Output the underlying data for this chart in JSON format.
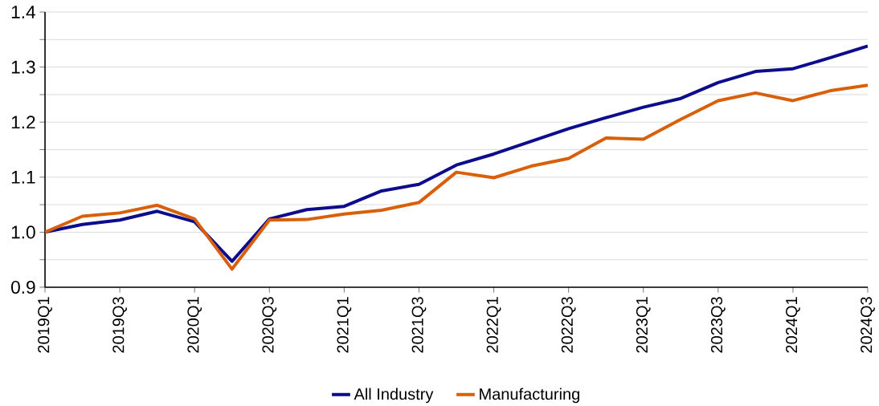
{
  "chart_data": {
    "type": "line",
    "categories": [
      "2019Q1",
      null,
      "2019Q3",
      null,
      "2020Q1",
      null,
      "2020Q3",
      null,
      "2021Q1",
      null,
      "2021Q3",
      null,
      "2022Q1",
      null,
      "2022Q3",
      null,
      "2023Q1",
      null,
      "2023Q3",
      null,
      "2024Q1",
      null,
      "2024Q3"
    ],
    "series": [
      {
        "name": "All Industry",
        "color": "#0c0c8c",
        "values": [
          1.0,
          1.014,
          1.022,
          1.038,
          1.019,
          0.947,
          1.024,
          1.041,
          1.047,
          1.075,
          1.087,
          1.122,
          1.142,
          1.165,
          1.188,
          1.208,
          1.227,
          1.243,
          1.272,
          1.292,
          1.297,
          1.317,
          1.338
        ]
      },
      {
        "name": "Manufacturing",
        "color": "#d9600a",
        "values": [
          1.0,
          1.029,
          1.035,
          1.049,
          1.024,
          0.933,
          1.022,
          1.023,
          1.033,
          1.04,
          1.054,
          1.109,
          1.099,
          1.12,
          1.134,
          1.171,
          1.169,
          1.205,
          1.239,
          1.253,
          1.239,
          1.257,
          1.267
        ]
      }
    ],
    "ylim": [
      0.9,
      1.4
    ],
    "yticks": [
      0.9,
      {
        "value": 0.95,
        "label": null
      },
      {
        "value": 1.0,
        "label": "1.0"
      },
      {
        "value": 1.05,
        "label": null
      },
      1.1,
      {
        "value": 1.15,
        "label": null
      },
      1.2,
      {
        "value": 1.25,
        "label": null
      },
      1.3,
      {
        "value": 1.35,
        "label": null
      },
      1.4
    ],
    "grid": "y",
    "legend": "bottom"
  }
}
